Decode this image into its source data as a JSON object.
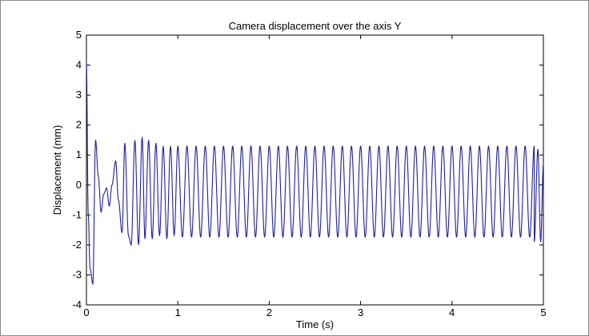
{
  "chart_data": {
    "type": "line",
    "title": "Camera displacement over the axis Y",
    "xlabel": "Time (s)",
    "ylabel": "Displacement (mm)",
    "xlim": [
      0,
      5
    ],
    "ylim": [
      -4,
      5
    ],
    "xticks": [
      "0",
      "1",
      "2",
      "3",
      "4",
      "5"
    ],
    "yticks": [
      "5",
      "4",
      "3",
      "2",
      "1",
      "0",
      "-1",
      "-2",
      "-3",
      "-4"
    ],
    "grid": false,
    "line_color": "#1f1fa0",
    "series": [
      {
        "x": [
          0,
          0.02,
          0.04,
          0.07,
          0.1,
          0.13,
          0.16,
          0.19,
          0.22,
          0.25,
          0.28,
          0.32,
          0.35,
          0.39,
          0.42,
          0.46,
          0.49,
          0.53,
          0.57,
          0.61,
          0.64,
          0.68,
          0.72,
          0.76,
          0.8,
          0.84,
          0.88,
          0.92,
          0.96,
          1.0,
          1.1,
          1.2,
          1.3,
          1.4,
          1.5,
          2.0,
          3.0,
          4.0,
          4.5,
          4.6,
          4.7,
          4.8,
          4.9,
          4.94,
          4.97,
          5.0
        ],
        "y": [
          4.1,
          -1.0,
          -2.8,
          -3.3,
          1.5,
          0.3,
          -0.9,
          -0.3,
          -0.1,
          -0.7,
          0.0,
          0.8,
          -0.5,
          -1.6,
          1.4,
          -1.7,
          -2.0,
          1.5,
          -2.0,
          1.6,
          -1.8,
          1.5,
          -1.8,
          1.4,
          -1.7,
          1.3,
          -1.8,
          1.3,
          -1.7,
          1.3,
          -1.7,
          1.3,
          -1.7,
          1.3,
          -1.7,
          1.3,
          -1.7,
          1.25,
          -1.75,
          1.2,
          -1.8,
          1.2,
          -1.9,
          1.2,
          -1.9,
          0.7
        ]
      }
    ]
  }
}
